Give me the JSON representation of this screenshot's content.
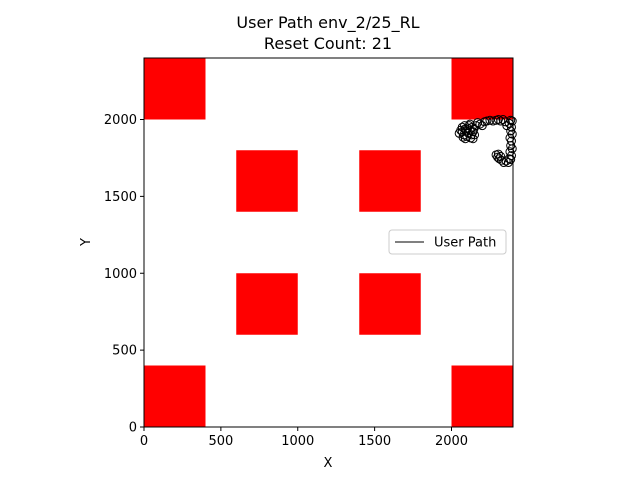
{
  "chart_data": {
    "type": "scatter",
    "title": "User Path env_2/25_RL",
    "subtitle": "Reset Count: 21",
    "xlabel": "X",
    "ylabel": "Y",
    "xlim": [
      0,
      2400
    ],
    "ylim": [
      0,
      2400
    ],
    "xticks": [
      0,
      500,
      1000,
      1500,
      2000
    ],
    "yticks": [
      0,
      500,
      1000,
      1500,
      2000
    ],
    "grid": false,
    "legend": {
      "placement": "right",
      "entries": [
        {
          "label": "User Path",
          "color": "#000000"
        }
      ]
    },
    "obstacles": [
      {
        "x": [
          0,
          400
        ],
        "y": [
          2000,
          2400
        ],
        "color": "#ff0000"
      },
      {
        "x": [
          2000,
          2400
        ],
        "y": [
          2000,
          2400
        ],
        "color": "#ff0000"
      },
      {
        "x": [
          600,
          1000
        ],
        "y": [
          1400,
          1800
        ],
        "color": "#ff0000"
      },
      {
        "x": [
          1400,
          1800
        ],
        "y": [
          1400,
          1800
        ],
        "color": "#ff0000"
      },
      {
        "x": [
          600,
          1000
        ],
        "y": [
          600,
          1000
        ],
        "color": "#ff0000"
      },
      {
        "x": [
          1400,
          1800
        ],
        "y": [
          600,
          1000
        ],
        "color": "#ff0000"
      },
      {
        "x": [
          0,
          400
        ],
        "y": [
          0,
          400
        ],
        "color": "#ff0000"
      },
      {
        "x": [
          2000,
          2400
        ],
        "y": [
          0,
          400
        ],
        "color": "#ff0000"
      }
    ],
    "series": [
      {
        "name": "User Path",
        "marker": "circle-open",
        "color": "#000000",
        "points": [
          [
            2050,
            1910
          ],
          [
            2060,
            1930
          ],
          [
            2070,
            1920
          ],
          [
            2080,
            1900
          ],
          [
            2090,
            1940
          ],
          [
            2070,
            1950
          ],
          [
            2085,
            1960
          ],
          [
            2095,
            1925
          ],
          [
            2105,
            1945
          ],
          [
            2100,
            1890
          ],
          [
            2110,
            1910
          ],
          [
            2120,
            1930
          ],
          [
            2115,
            1960
          ],
          [
            2125,
            1880
          ],
          [
            2130,
            1900
          ],
          [
            2140,
            1920
          ],
          [
            2135,
            1950
          ],
          [
            2120,
            1970
          ],
          [
            2140,
            1875
          ],
          [
            2090,
            1875
          ],
          [
            2075,
            1885
          ],
          [
            2150,
            1900
          ],
          [
            2145,
            1935
          ],
          [
            2160,
            1960
          ],
          [
            2170,
            1980
          ],
          [
            2185,
            1970
          ],
          [
            2200,
            1960
          ],
          [
            2215,
            1985
          ],
          [
            2230,
            1990
          ],
          [
            2250,
            1995
          ],
          [
            2270,
            1990
          ],
          [
            2290,
            1995
          ],
          [
            2305,
            2000
          ],
          [
            2320,
            1990
          ],
          [
            2335,
            2000
          ],
          [
            2350,
            1985
          ],
          [
            2360,
            1960
          ],
          [
            2375,
            1975
          ],
          [
            2385,
            1995
          ],
          [
            2395,
            1990
          ],
          [
            2390,
            1950
          ],
          [
            2385,
            1925
          ],
          [
            2395,
            1905
          ],
          [
            2380,
            1880
          ],
          [
            2390,
            1860
          ],
          [
            2385,
            1830
          ],
          [
            2395,
            1810
          ],
          [
            2380,
            1790
          ],
          [
            2390,
            1765
          ],
          [
            2375,
            1745
          ],
          [
            2355,
            1730
          ],
          [
            2340,
            1720
          ],
          [
            2325,
            1735
          ],
          [
            2310,
            1745
          ],
          [
            2320,
            1760
          ],
          [
            2305,
            1775
          ],
          [
            2290,
            1770
          ],
          [
            2300,
            1755
          ],
          [
            2385,
            1740
          ],
          [
            2370,
            1720
          ]
        ]
      }
    ]
  }
}
